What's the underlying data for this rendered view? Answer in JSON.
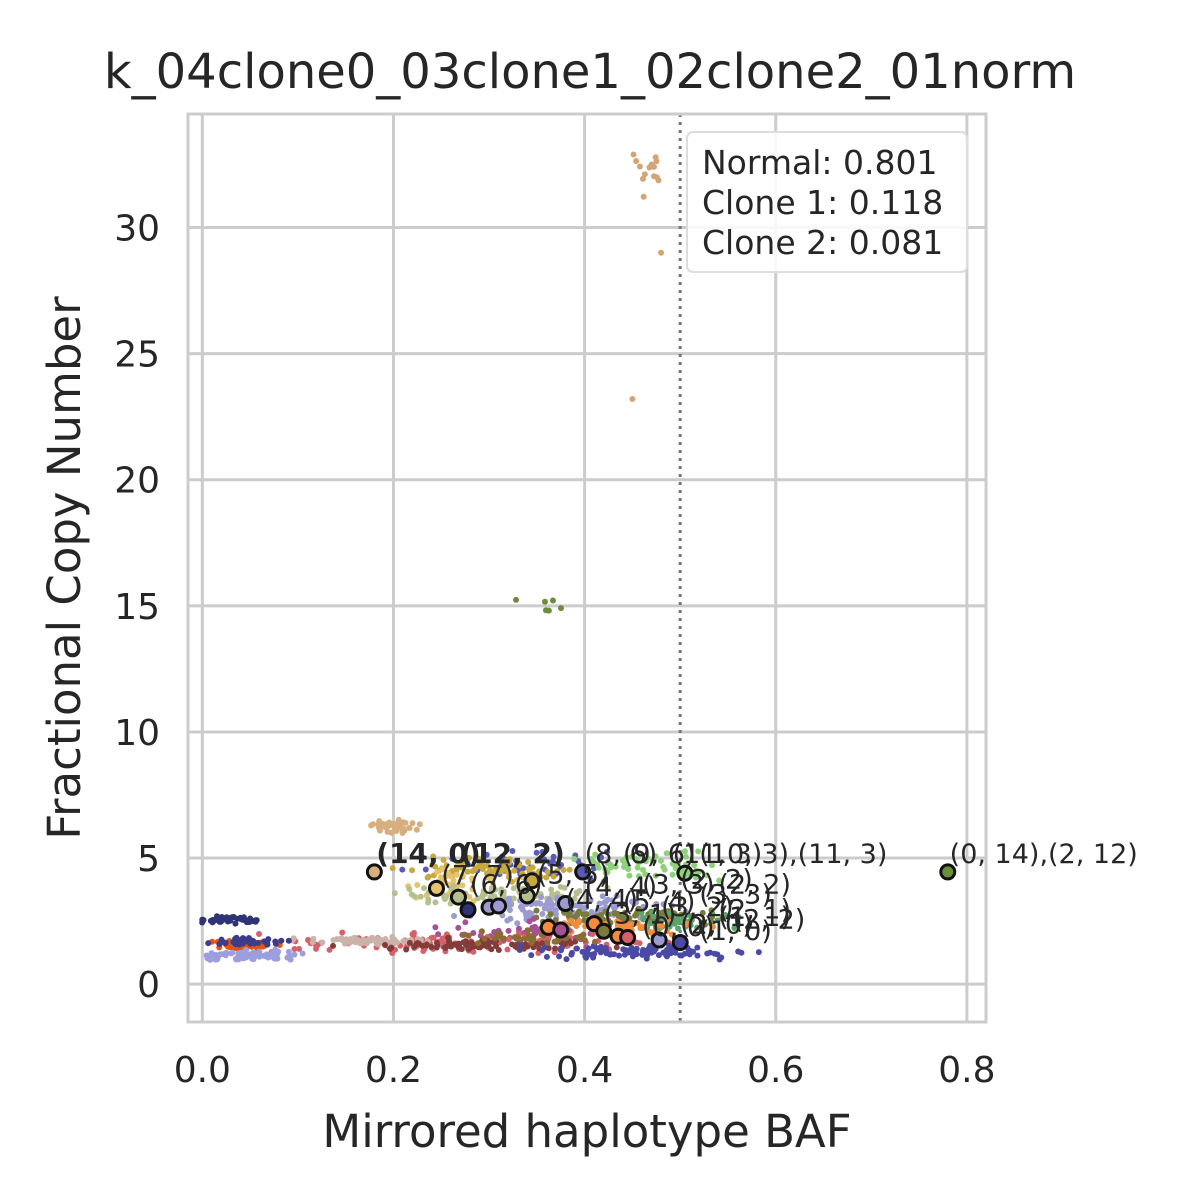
{
  "chart_data": {
    "type": "scatter",
    "title": "k_04clone0_03clone1_02clone2_01norm",
    "xlabel": "Mirrored haplotype BAF",
    "ylabel": "Fractional Copy Number",
    "xlim": [
      -0.015,
      0.82
    ],
    "ylim": [
      -1.5,
      34.5
    ],
    "xticks": [
      0.0,
      0.2,
      0.4,
      0.6,
      0.8
    ],
    "xtick_labels": [
      "0.0",
      "0.2",
      "0.4",
      "0.6",
      "0.8"
    ],
    "yticks": [
      0,
      5,
      10,
      15,
      20,
      25,
      30
    ],
    "ytick_labels": [
      "0",
      "5",
      "10",
      "15",
      "20",
      "25",
      "30"
    ],
    "grid": true,
    "reference_line": {
      "x": 0.5,
      "style": "dotted"
    },
    "legend": {
      "position": "top-right",
      "entries": [
        "Normal: 0.801",
        "Clone 1: 0.118",
        "Clone 2: 0.081"
      ]
    },
    "clusters": [
      {
        "color": "#d4a574",
        "cx": 0.465,
        "cy": 32.2,
        "sx": 0.01,
        "sy": 0.6,
        "n": 14
      },
      {
        "color": "#d4a574",
        "cx": 0.45,
        "cy": 23.2,
        "sx": 0.0,
        "sy": 0.0,
        "n": 1
      },
      {
        "color": "#d4a574",
        "cx": 0.48,
        "cy": 29.0,
        "sx": 0.0,
        "sy": 0.0,
        "n": 1
      },
      {
        "color": "#6b8e3a",
        "cx": 0.36,
        "cy": 15.05,
        "sx": 0.012,
        "sy": 0.2,
        "n": 6
      },
      {
        "color": "#d8ae7e",
        "cx": 0.2,
        "cy": 6.25,
        "sx": 0.012,
        "sy": 0.12,
        "n": 40
      },
      {
        "color": "#5a5ab5",
        "cx": 0.34,
        "cy": 4.8,
        "sx": 0.05,
        "sy": 0.25,
        "n": 50
      },
      {
        "color": "#8fd17a",
        "cx": 0.47,
        "cy": 4.65,
        "sx": 0.045,
        "sy": 0.25,
        "n": 60
      },
      {
        "color": "#c7a93f",
        "cx": 0.3,
        "cy": 4.55,
        "sx": 0.04,
        "sy": 0.2,
        "n": 70
      },
      {
        "color": "#e7c36a",
        "cx": 0.27,
        "cy": 3.9,
        "sx": 0.03,
        "sy": 0.4,
        "n": 40
      },
      {
        "color": "#b6c08f",
        "cx": 0.3,
        "cy": 3.5,
        "sx": 0.05,
        "sy": 0.2,
        "n": 80
      },
      {
        "color": "#9b9bd1",
        "cx": 0.38,
        "cy": 3.0,
        "sx": 0.05,
        "sy": 0.25,
        "n": 120
      },
      {
        "color": "#2e3475",
        "cx": 0.03,
        "cy": 2.55,
        "sx": 0.012,
        "sy": 0.08,
        "n": 45
      },
      {
        "color": "#7a7a3a",
        "cx": 0.45,
        "cy": 2.6,
        "sx": 0.05,
        "sy": 0.2,
        "n": 90
      },
      {
        "color": "#5aa36a",
        "cx": 0.5,
        "cy": 2.5,
        "sx": 0.03,
        "sy": 0.2,
        "n": 40
      },
      {
        "color": "#f58b3c",
        "cx": 0.43,
        "cy": 2.3,
        "sx": 0.04,
        "sy": 0.15,
        "n": 60
      },
      {
        "color": "#a55194",
        "cx": 0.34,
        "cy": 2.0,
        "sx": 0.05,
        "sy": 0.2,
        "n": 60
      },
      {
        "color": "#d6616b",
        "cx": 0.28,
        "cy": 1.65,
        "sx": 0.1,
        "sy": 0.2,
        "n": 120
      },
      {
        "color": "#c9b3aa",
        "cx": 0.17,
        "cy": 1.7,
        "sx": 0.03,
        "sy": 0.07,
        "n": 80
      },
      {
        "color": "#843c39",
        "cx": 0.3,
        "cy": 1.55,
        "sx": 0.06,
        "sy": 0.1,
        "n": 90
      },
      {
        "color": "#4a4aa6",
        "cx": 0.45,
        "cy": 1.3,
        "sx": 0.06,
        "sy": 0.15,
        "n": 100
      },
      {
        "color": "#e6550d",
        "cx": 0.04,
        "cy": 1.55,
        "sx": 0.015,
        "sy": 0.08,
        "n": 60
      },
      {
        "color": "#3c3c8c",
        "cx": 0.05,
        "cy": 1.7,
        "sx": 0.02,
        "sy": 0.08,
        "n": 40
      },
      {
        "color": "#9c9ede",
        "cx": 0.05,
        "cy": 1.15,
        "sx": 0.025,
        "sy": 0.1,
        "n": 70
      },
      {
        "color": "#8c6d31",
        "cx": 0.34,
        "cy": 1.85,
        "sx": 0.05,
        "sy": 0.12,
        "n": 40
      }
    ],
    "centroids": [
      {
        "x": 0.18,
        "y": 4.45,
        "color": "#d8ae7e"
      },
      {
        "x": 0.245,
        "y": 3.8,
        "color": "#e7c36a"
      },
      {
        "x": 0.268,
        "y": 3.45,
        "color": "#b6c08f"
      },
      {
        "x": 0.278,
        "y": 2.95,
        "color": "#2e3475"
      },
      {
        "x": 0.3,
        "y": 3.05,
        "color": "#9b9bd1"
      },
      {
        "x": 0.31,
        "y": 3.1,
        "color": "#9b9bd1"
      },
      {
        "x": 0.34,
        "y": 3.5,
        "color": "#b6c08f"
      },
      {
        "x": 0.345,
        "y": 4.1,
        "color": "#c7a93f"
      },
      {
        "x": 0.362,
        "y": 2.25,
        "color": "#f58b3c"
      },
      {
        "x": 0.375,
        "y": 2.15,
        "color": "#a55194"
      },
      {
        "x": 0.38,
        "y": 3.2,
        "color": "#9b9bd1"
      },
      {
        "x": 0.398,
        "y": 4.45,
        "color": "#5a5ab5"
      },
      {
        "x": 0.41,
        "y": 2.4,
        "color": "#f58b3c"
      },
      {
        "x": 0.42,
        "y": 2.1,
        "color": "#7a7a3a"
      },
      {
        "x": 0.435,
        "y": 1.9,
        "color": "#f58b3c"
      },
      {
        "x": 0.445,
        "y": 1.85,
        "color": "#d6616b"
      },
      {
        "x": 0.478,
        "y": 1.75,
        "color": "#9b9bd1"
      },
      {
        "x": 0.5,
        "y": 1.65,
        "color": "#4a4aa6"
      },
      {
        "x": 0.505,
        "y": 4.4,
        "color": "#8fd17a"
      },
      {
        "x": 0.78,
        "y": 4.45,
        "color": "#6b8e3a"
      }
    ],
    "annotations": [
      {
        "text": "(14, 0)",
        "x": 0.182,
        "y": 4.8,
        "bold": true
      },
      {
        "text": "(12, 2)",
        "x": 0.27,
        "y": 4.8,
        "bold": true
      },
      {
        "text": "(8, 6)",
        "x": 0.4,
        "y": 4.8,
        "bold": false
      },
      {
        "text": "(9, 6)",
        "x": 0.44,
        "y": 4.8,
        "bold": false
      },
      {
        "text": "(11, 3)",
        "x": 0.492,
        "y": 4.8,
        "bold": false
      },
      {
        "text": "(10, 3),(11, 3)",
        "x": 0.52,
        "y": 4.8,
        "bold": false
      },
      {
        "text": "(0, 14),(2, 12)",
        "x": 0.782,
        "y": 4.8,
        "bold": false
      },
      {
        "text": "(7, 7)",
        "x": 0.25,
        "y": 3.95,
        "bold": false
      },
      {
        "text": "(6, 6)",
        "x": 0.28,
        "y": 3.6,
        "bold": false
      },
      {
        "text": "(5, 5)",
        "x": 0.35,
        "y": 4.0,
        "bold": false
      },
      {
        "text": "(4, 4)",
        "x": 0.4,
        "y": 3.5,
        "bold": false
      },
      {
        "text": "(3, 3)",
        "x": 0.46,
        "y": 3.6,
        "bold": false
      },
      {
        "text": "(2, 2)",
        "x": 0.5,
        "y": 3.8,
        "bold": false
      },
      {
        "text": "(2, 2)",
        "x": 0.54,
        "y": 3.6,
        "bold": false
      },
      {
        "text": "(3, 3)",
        "x": 0.52,
        "y": 3.2,
        "bold": false
      },
      {
        "text": "(4, 4)",
        "x": 0.38,
        "y": 3.0,
        "bold": false
      },
      {
        "text": "(5, 4)",
        "x": 0.44,
        "y": 2.9,
        "bold": false
      },
      {
        "text": "(3, 2)",
        "x": 0.48,
        "y": 2.7,
        "bold": false
      },
      {
        "text": "(2, 1)",
        "x": 0.54,
        "y": 2.6,
        "bold": false
      },
      {
        "text": "(1, 1)",
        "x": 0.54,
        "y": 2.3,
        "bold": false
      },
      {
        "text": "(2, 0)",
        "x": 0.5,
        "y": 2.0,
        "bold": false
      },
      {
        "text": "(1, 0)",
        "x": 0.52,
        "y": 1.75,
        "bold": false
      },
      {
        "text": "(0, 0)",
        "x": 0.46,
        "y": 1.9,
        "bold": false
      },
      {
        "text": "(3, 1)",
        "x": 0.42,
        "y": 2.4,
        "bold": false
      },
      {
        "text": "(2, 2)",
        "x": 0.555,
        "y": 2.2,
        "bold": false
      }
    ]
  }
}
